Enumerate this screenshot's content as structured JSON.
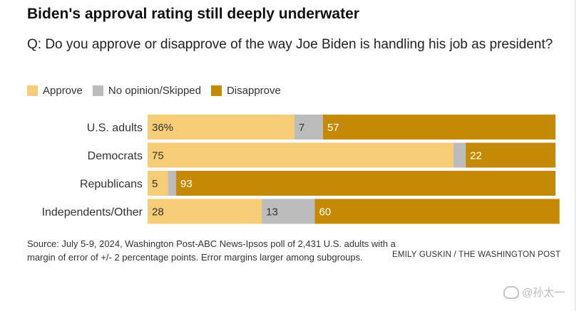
{
  "title": "Biden's approval rating still deeply underwater",
  "subtitle": "Q: Do you approve or disapprove of the way Joe Biden is handling his job as president?",
  "legend": [
    {
      "label": "Approve",
      "color": "#f6cd76"
    },
    {
      "label": "No opinion/Skipped",
      "color": "#bcbcbc"
    },
    {
      "label": "Disapprove",
      "color": "#c48a06"
    }
  ],
  "chart_data": {
    "type": "bar",
    "orientation": "horizontal",
    "stacked": true,
    "title": "Biden's approval rating still deeply underwater",
    "categories": [
      "U.S. adults",
      "Democrats",
      "Republicans",
      "Independents/Other"
    ],
    "series": [
      {
        "name": "Approve",
        "color": "#f6cd76",
        "values": [
          36,
          75,
          5,
          28
        ],
        "labels": [
          "36%",
          "75",
          "5",
          "28"
        ],
        "label_color": "#333333"
      },
      {
        "name": "No opinion/Skipped",
        "color": "#bcbcbc",
        "values": [
          7,
          3,
          2,
          13
        ],
        "labels": [
          "7",
          "",
          "",
          "13"
        ],
        "label_color": "#333333"
      },
      {
        "name": "Disapprove",
        "color": "#c48a06",
        "values": [
          57,
          22,
          93,
          60
        ],
        "labels": [
          "57",
          "22",
          "93",
          "60"
        ],
        "label_color": "#ffffff"
      }
    ],
    "xlim": [
      0,
      100
    ],
    "grid": false,
    "legend_position": "top-left"
  },
  "source": "Source: July 5-9, 2024, Washington Post-ABC News-Ipsos poll of 2,431 U.S. adults with a margin of error of +/- 2 percentage points. Error margins larger among subgroups.",
  "credit": "EMILY GUSKIN / THE WASHINGTON POST",
  "watermark": "@孙太一"
}
